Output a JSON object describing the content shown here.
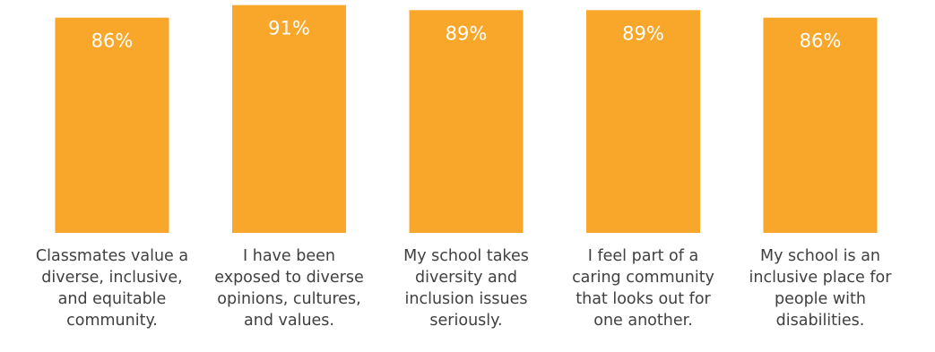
{
  "chart_data": {
    "type": "bar",
    "title": "",
    "xlabel": "",
    "ylabel": "",
    "ylim": [
      0,
      100
    ],
    "bar_color": "#F9A72B",
    "value_label_color": "#FFFFFF",
    "category_label_color": "#404040",
    "categories": [
      [
        "Classmates value a",
        "diverse, inclusive,",
        "and equitable",
        "community."
      ],
      [
        "I have been",
        "exposed to diverse",
        "opinions, cultures,",
        "and values."
      ],
      [
        "My school takes",
        "diversity and",
        "inclusion issues",
        "seriously."
      ],
      [
        "I feel part of a",
        "caring community",
        "that looks out for",
        "one another."
      ],
      [
        "My school is an",
        "inclusive place for",
        "people with",
        "disabilities."
      ]
    ],
    "values": [
      86,
      91,
      89,
      89,
      86
    ],
    "value_labels": [
      "86%",
      "91%",
      "89%",
      "89%",
      "86%"
    ]
  }
}
